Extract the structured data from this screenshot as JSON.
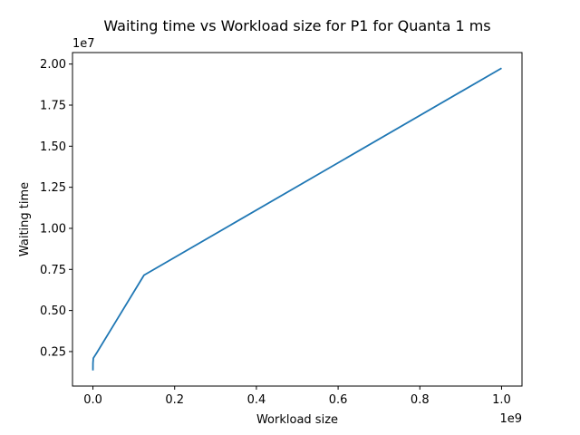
{
  "chart_data": {
    "type": "line",
    "title": "Waiting time vs Workload size for P1 for Quanta 1 ms",
    "xlabel": "Workload size",
    "ylabel": "Waiting time",
    "x_offset_text": "1e9",
    "y_offset_text": "1e7",
    "xlim": [
      -50000000,
      1050000000
    ],
    "ylim": [
      400000,
      20700000
    ],
    "xticks": [
      0,
      200000000,
      400000000,
      600000000,
      800000000,
      1000000000
    ],
    "xtick_labels": [
      "0.0",
      "0.2",
      "0.4",
      "0.6",
      "0.8",
      "1.0"
    ],
    "yticks": [
      2500000,
      5000000,
      7500000,
      10000000,
      12500000,
      15000000,
      17500000,
      20000000
    ],
    "ytick_labels": [
      "0.25",
      "0.50",
      "0.75",
      "1.00",
      "1.25",
      "1.50",
      "1.75",
      "2.00"
    ],
    "grid": false,
    "color": "#1f77b4",
    "series": [
      {
        "x": [
          1000,
          10000,
          100000,
          1000000,
          10000000,
          125000000,
          1000000000
        ],
        "y": [
          1350000,
          1500000,
          1800000,
          2100000,
          2450000,
          7150000,
          19750000
        ]
      }
    ]
  }
}
